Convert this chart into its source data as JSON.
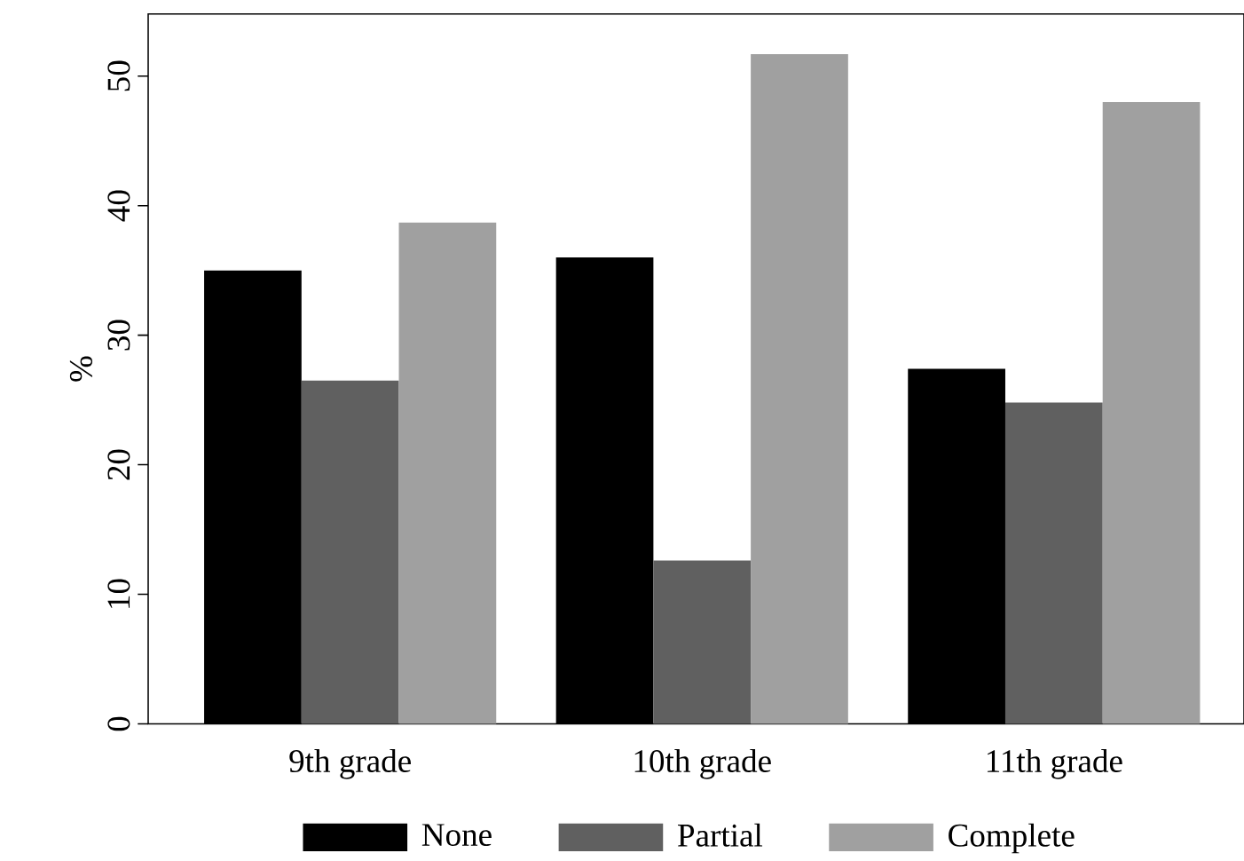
{
  "chart_data": {
    "type": "bar",
    "ylabel": "%",
    "categories": [
      "9th grade",
      "10th grade",
      "11th grade"
    ],
    "series": [
      {
        "name": "None",
        "color": "#000000",
        "values": [
          35.0,
          36.0,
          27.4
        ]
      },
      {
        "name": "Partial",
        "color": "#606060",
        "values": [
          26.5,
          12.6,
          24.8
        ]
      },
      {
        "name": "Complete",
        "color": "#a0a0a0",
        "values": [
          38.7,
          51.7,
          48.0
        ]
      }
    ],
    "ylim": [
      0,
      54.8
    ],
    "yticks": [
      0,
      10,
      20,
      30,
      40,
      50
    ],
    "grid": false,
    "legend": "bottom"
  }
}
